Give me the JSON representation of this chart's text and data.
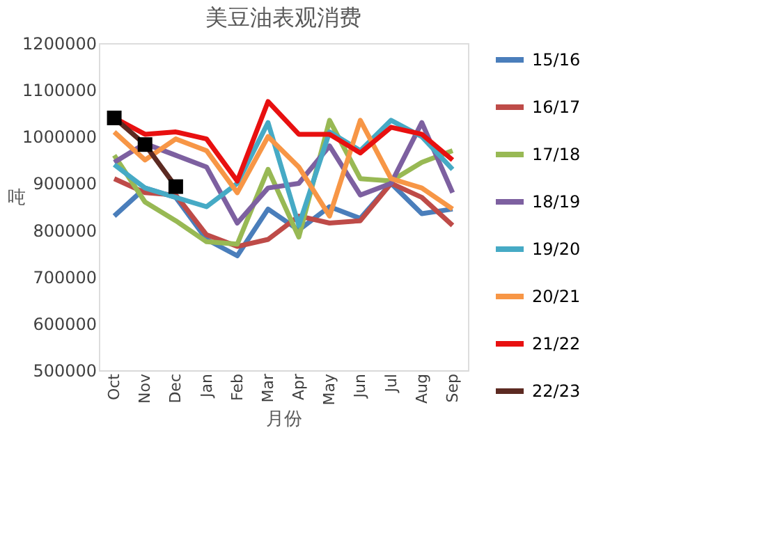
{
  "chart_data": {
    "type": "line",
    "title": "美豆油表观消费",
    "xlabel": "月份",
    "ylabel": "吨",
    "categories": [
      "Oct",
      "Nov",
      "Dec",
      "Jan",
      "Feb",
      "Mar",
      "Apr",
      "May",
      "Jun",
      "Jul",
      "Aug",
      "Sep"
    ],
    "ylim": [
      500000,
      1200000
    ],
    "yticks": [
      500000,
      600000,
      700000,
      800000,
      900000,
      1000000,
      1100000,
      1200000
    ],
    "grid": false,
    "legend": "right",
    "line_style": "solid",
    "series": [
      {
        "name": "15/16",
        "color": "#4a7ebb",
        "values": [
          830000,
          890000,
          870000,
          780000,
          745000,
          845000,
          800000,
          850000,
          825000,
          900000,
          835000,
          845000
        ]
      },
      {
        "name": "16/17",
        "color": "#be4b48",
        "values": [
          910000,
          880000,
          875000,
          790000,
          765000,
          780000,
          830000,
          815000,
          820000,
          900000,
          870000,
          810000
        ]
      },
      {
        "name": "17/18",
        "color": "#98b954",
        "values": [
          960000,
          860000,
          820000,
          775000,
          770000,
          930000,
          785000,
          1035000,
          910000,
          905000,
          945000,
          970000
        ]
      },
      {
        "name": "18/19",
        "color": "#7d60a0",
        "values": [
          945000,
          985000,
          960000,
          935000,
          815000,
          890000,
          900000,
          980000,
          875000,
          900000,
          1030000,
          880000
        ]
      },
      {
        "name": "19/20",
        "color": "#46aac5",
        "values": [
          940000,
          890000,
          870000,
          850000,
          900000,
          1030000,
          810000,
          1010000,
          970000,
          1035000,
          1000000,
          930000
        ]
      },
      {
        "name": "20/21",
        "color": "#f79646",
        "values": [
          1010000,
          950000,
          995000,
          970000,
          880000,
          1000000,
          935000,
          830000,
          1035000,
          910000,
          890000,
          845000
        ]
      },
      {
        "name": "21/22",
        "color": "#e81010",
        "values": [
          1040000,
          1005000,
          1010000,
          995000,
          905000,
          1075000,
          1005000,
          1005000,
          965000,
          1020000,
          1005000,
          950000
        ]
      },
      {
        "name": "22/23",
        "color": "#5c2a22",
        "marker": "square",
        "values": [
          1040000,
          983000,
          893000,
          null,
          null,
          null,
          null,
          null,
          null,
          null,
          null,
          null
        ]
      }
    ]
  }
}
